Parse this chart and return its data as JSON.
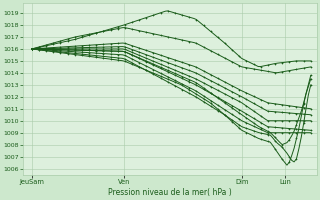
{
  "xlabel": "Pression niveau de la mer( hPa )",
  "bg_color": "#cde8cd",
  "plot_bg_color": "#ddf0dd",
  "grid_color": "#aaccaa",
  "line_color": "#1a5c1a",
  "ylim": [
    1005.5,
    1019.8
  ],
  "yticks": [
    1006,
    1007,
    1008,
    1009,
    1010,
    1011,
    1012,
    1013,
    1014,
    1015,
    1016,
    1017,
    1018,
    1019
  ],
  "xtick_labels": [
    "JeuSam",
    "Ven",
    "Dim",
    "Lun"
  ],
  "xtick_pos": [
    0.03,
    0.35,
    0.76,
    0.91
  ],
  "series": [
    [
      [
        0.03,
        1016.0
      ],
      [
        0.18,
        1016.8
      ],
      [
        0.35,
        1018.0
      ],
      [
        0.5,
        1019.2
      ],
      [
        0.6,
        1018.5
      ],
      [
        0.7,
        1016.5
      ],
      [
        0.76,
        1015.2
      ],
      [
        0.82,
        1014.5
      ],
      [
        0.88,
        1014.8
      ],
      [
        0.95,
        1015.0
      ],
      [
        1.0,
        1015.0
      ]
    ],
    [
      [
        0.03,
        1016.0
      ],
      [
        0.18,
        1017.0
      ],
      [
        0.35,
        1017.8
      ],
      [
        0.6,
        1016.5
      ],
      [
        0.76,
        1014.5
      ],
      [
        0.88,
        1014.0
      ],
      [
        1.0,
        1014.5
      ]
    ],
    [
      [
        0.03,
        1016.0
      ],
      [
        0.35,
        1016.5
      ],
      [
        0.6,
        1014.5
      ],
      [
        0.76,
        1012.5
      ],
      [
        0.85,
        1011.5
      ],
      [
        1.0,
        1011.0
      ]
    ],
    [
      [
        0.03,
        1016.0
      ],
      [
        0.35,
        1016.2
      ],
      [
        0.6,
        1014.0
      ],
      [
        0.76,
        1012.0
      ],
      [
        0.85,
        1010.8
      ],
      [
        1.0,
        1010.5
      ]
    ],
    [
      [
        0.03,
        1016.0
      ],
      [
        0.35,
        1016.0
      ],
      [
        0.6,
        1013.5
      ],
      [
        0.76,
        1011.5
      ],
      [
        0.85,
        1010.0
      ],
      [
        1.0,
        1010.0
      ]
    ],
    [
      [
        0.03,
        1016.0
      ],
      [
        0.35,
        1015.8
      ],
      [
        0.6,
        1013.0
      ],
      [
        0.76,
        1010.8
      ],
      [
        0.85,
        1009.5
      ],
      [
        1.0,
        1009.2
      ]
    ],
    [
      [
        0.03,
        1016.0
      ],
      [
        0.35,
        1015.5
      ],
      [
        0.6,
        1012.5
      ],
      [
        0.76,
        1010.0
      ],
      [
        0.85,
        1009.0
      ],
      [
        1.0,
        1009.0
      ]
    ],
    [
      [
        0.03,
        1016.0
      ],
      [
        0.35,
        1015.2
      ],
      [
        0.6,
        1012.0
      ],
      [
        0.7,
        1010.5
      ],
      [
        0.76,
        1009.2
      ],
      [
        0.82,
        1008.5
      ],
      [
        0.86,
        1008.2
      ],
      [
        0.88,
        1007.5
      ],
      [
        0.9,
        1006.8
      ],
      [
        0.92,
        1006.2
      ],
      [
        0.94,
        1007.5
      ],
      [
        0.96,
        1009.5
      ],
      [
        0.98,
        1012.0
      ],
      [
        1.0,
        1013.5
      ]
    ],
    [
      [
        0.03,
        1016.0
      ],
      [
        0.35,
        1015.0
      ],
      [
        0.55,
        1013.0
      ],
      [
        0.65,
        1011.5
      ],
      [
        0.7,
        1010.5
      ],
      [
        0.76,
        1009.5
      ],
      [
        0.82,
        1009.0
      ],
      [
        0.86,
        1008.8
      ],
      [
        0.88,
        1008.2
      ],
      [
        0.9,
        1007.8
      ],
      [
        0.92,
        1007.2
      ],
      [
        0.93,
        1006.8
      ],
      [
        0.94,
        1006.5
      ],
      [
        0.95,
        1006.8
      ],
      [
        0.96,
        1007.8
      ],
      [
        0.97,
        1009.0
      ],
      [
        0.98,
        1010.5
      ],
      [
        0.99,
        1012.0
      ],
      [
        1.0,
        1013.0
      ]
    ],
    [
      [
        0.03,
        1016.0
      ],
      [
        0.35,
        1015.8
      ],
      [
        0.6,
        1013.2
      ],
      [
        0.76,
        1010.5
      ],
      [
        0.82,
        1009.5
      ],
      [
        0.86,
        1009.0
      ],
      [
        0.88,
        1008.5
      ],
      [
        0.9,
        1008.0
      ],
      [
        0.92,
        1008.2
      ],
      [
        0.94,
        1009.0
      ],
      [
        0.97,
        1011.0
      ],
      [
        1.0,
        1013.8
      ]
    ]
  ]
}
